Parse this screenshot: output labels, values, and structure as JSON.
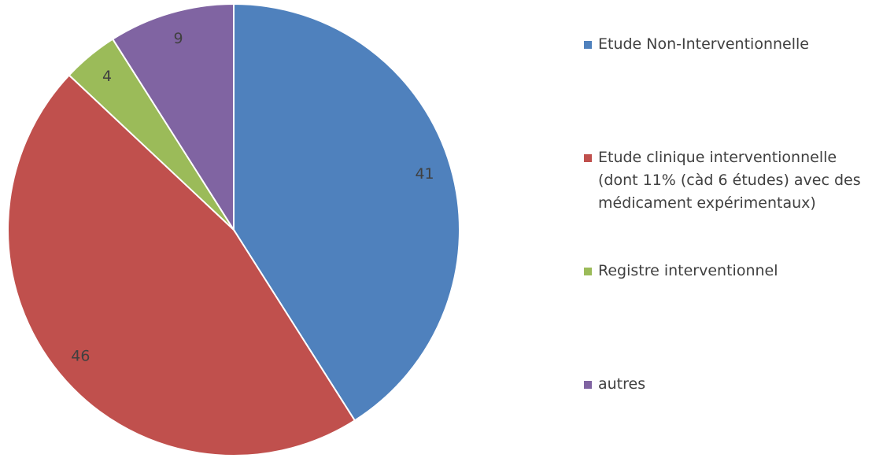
{
  "chart_data": {
    "type": "pie",
    "categories": [
      "Etude Non-Interventionnelle",
      "Etude clinique interventionnelle (dont 11% (càd 6 études) avec des médicament expérimentaux)",
      "Registre interventionnel",
      "autres"
    ],
    "values": [
      41,
      46,
      4,
      9
    ],
    "colors": [
      "#4f81bd",
      "#c0504d",
      "#9bbb59",
      "#8064a2"
    ],
    "legend": "right"
  }
}
